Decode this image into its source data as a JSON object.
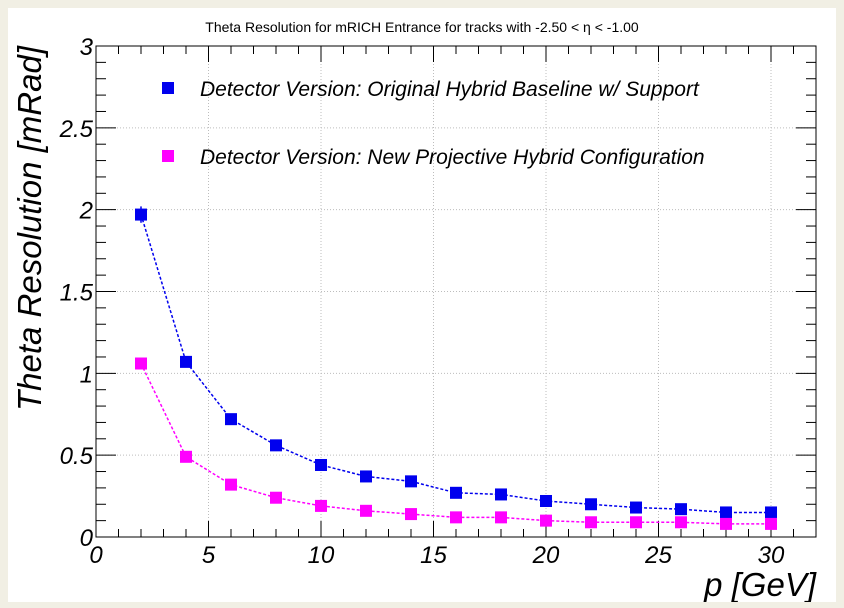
{
  "chart_data": {
    "type": "scatter",
    "title": "Theta Resolution for mRICH Entrance for tracks with -2.50 < η < -1.00",
    "xlabel": "p [GeV]",
    "ylabel": "Theta Resolution [mRad]",
    "xlim": [
      0,
      32
    ],
    "ylim": [
      0,
      3
    ],
    "xticks": [
      0,
      5,
      10,
      15,
      20,
      25,
      30
    ],
    "xtick_labels": [
      "0",
      "5",
      "10",
      "15",
      "20",
      "25",
      "30"
    ],
    "yticks": [
      0,
      0.5,
      1,
      1.5,
      2,
      2.5,
      3
    ],
    "ytick_labels": [
      "0",
      "0.5",
      "1",
      "1.5",
      "2",
      "2.5",
      "3"
    ],
    "grid": true,
    "legend_position": "top-right",
    "x": [
      2,
      4,
      6,
      8,
      10,
      12,
      14,
      16,
      18,
      20,
      22,
      24,
      26,
      28,
      30
    ],
    "series": [
      {
        "name": "Detector Version: Original Hybrid Baseline w/ Support",
        "color": "#0000ee",
        "values": [
          1.97,
          1.07,
          0.72,
          0.56,
          0.44,
          0.37,
          0.34,
          0.27,
          0.26,
          0.22,
          0.2,
          0.18,
          0.17,
          0.15,
          0.15
        ],
        "errors": [
          0.05,
          0.015,
          0.01,
          0.01,
          0.01,
          0.01,
          0.01,
          0.01,
          0.01,
          0.01,
          0.01,
          0.01,
          0.01,
          0.01,
          0.01
        ]
      },
      {
        "name": "Detector Version: New Projective Hybrid Configuration",
        "color": "#ff00ff",
        "values": [
          1.06,
          0.49,
          0.32,
          0.24,
          0.19,
          0.16,
          0.14,
          0.12,
          0.12,
          0.1,
          0.09,
          0.09,
          0.09,
          0.08,
          0.08
        ],
        "errors": [
          0.01,
          0.01,
          0.01,
          0.005,
          0.005,
          0.005,
          0.005,
          0.005,
          0.005,
          0.005,
          0.005,
          0.005,
          0.005,
          0.005,
          0.005
        ]
      }
    ]
  }
}
